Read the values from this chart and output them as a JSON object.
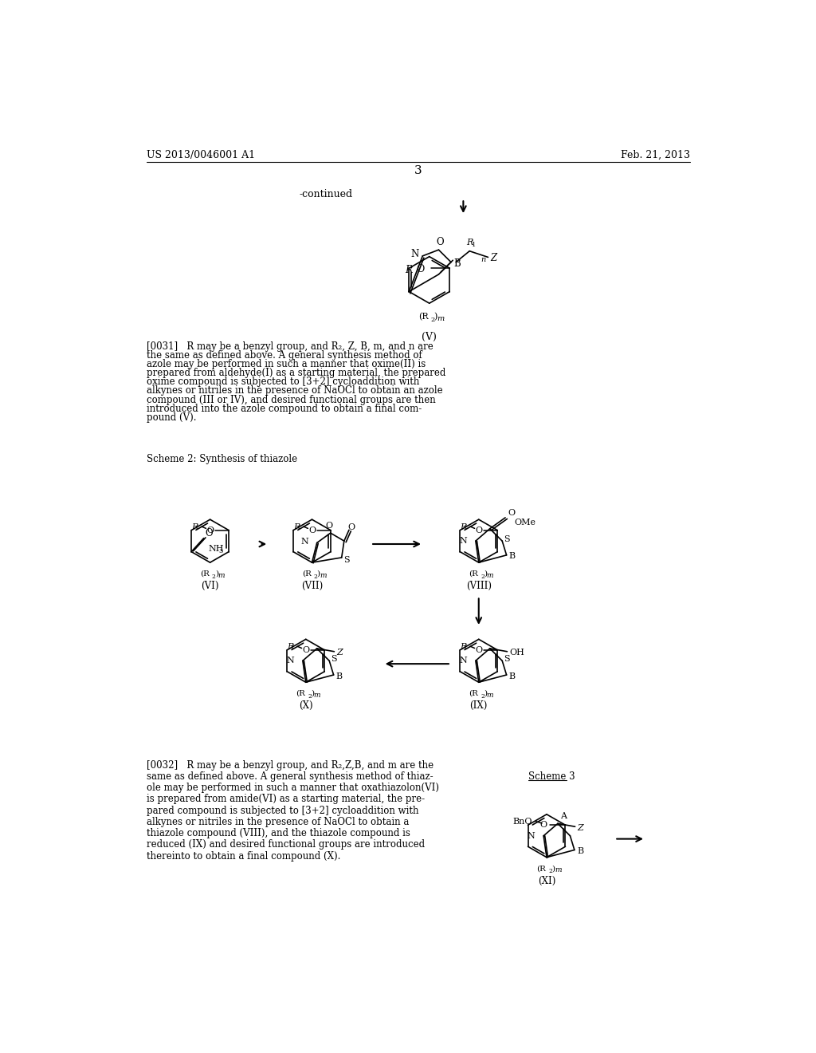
{
  "background_color": "#ffffff",
  "header_left": "US 2013/0046001 A1",
  "header_right": "Feb. 21, 2013",
  "page_number": "3",
  "continued_text": "-continued",
  "scheme2_label": "Scheme 2: Synthesis of thiazole",
  "scheme3_label": "Scheme 3",
  "paragraph_0031_lines": [
    "[0031]   R may be a benzyl group, and R₂, Z, B, m, and n are",
    "the same as defined above. A general synthesis method of",
    "azole may be performed in such a manner that oxime(II) is",
    "prepared from aldehyde(I) as a starting material, the prepared",
    "oxime compound is subjected to [3+2] cycloaddition with",
    "alkynes or nitriles in the presence of NaOCl to obtain an azole",
    "compound (III or IV), and desired functional groups are then",
    "introduced into the azole compound to obtain a final com-",
    "pound (V)."
  ],
  "paragraph_0032_lines": [
    "[0032]   R may be a benzyl group, and R₂,Z,B, and m are the",
    "same as defined above. A general synthesis method of thiaz-",
    "ole may be performed in such a manner that oxathiazolon(VI)",
    "is prepared from amide(VI) as a starting material, the pre-",
    "pared compound is subjected to [3+2] cycloaddition with",
    "alkynes or nitriles in the presence of NaOCl to obtain a",
    "thiazole compound (VIII), and the thiazole compound is",
    "reduced (IX) and desired functional groups are introduced",
    "thereinto to obtain a final compound (X)."
  ],
  "font_color": "#000000"
}
